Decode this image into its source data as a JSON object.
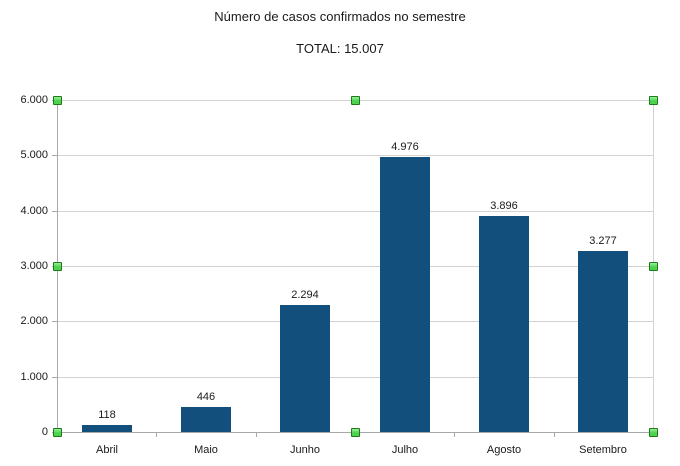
{
  "chart_data": {
    "type": "bar",
    "title": "Número de casos confirmados no semestre",
    "subtitle": "TOTAL: 15.007",
    "categories": [
      "Abril",
      "Maio",
      "Junho",
      "Julho",
      "Agosto",
      "Setembro"
    ],
    "values": [
      118,
      446,
      2294,
      4976,
      3896,
      3277
    ],
    "value_labels": [
      "118",
      "446",
      "2.294",
      "4.976",
      "3.896",
      "3.277"
    ],
    "y_tick_labels": [
      "0",
      "1.000",
      "2.000",
      "3.000",
      "4.000",
      "5.000",
      "6.000"
    ],
    "ylim": [
      0,
      6000
    ],
    "y_tick_step": 1000,
    "grid": true,
    "legend": "none",
    "total": "15.007",
    "colors": {
      "bar": "#124f7d",
      "gridline": "#d2d2d2",
      "axis": "#a8a8a8",
      "text": "#1a1a1a",
      "handle_fill": "#4ed24e",
      "handle_highlight": "#97ef97",
      "handle_border": "#1c7a1c"
    },
    "selection": {
      "state": "chart-selected",
      "handle_names": [
        "top-left",
        "top-center",
        "top-right",
        "middle-left",
        "middle-right",
        "bottom-left",
        "bottom-center",
        "bottom-right"
      ]
    }
  }
}
